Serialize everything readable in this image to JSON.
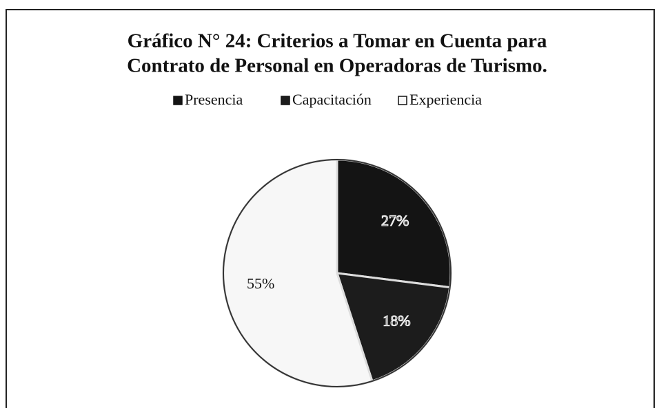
{
  "chart_data": {
    "type": "pie",
    "title": [
      "Gráfico N° 24: Criterios  a Tomar en Cuenta para",
      "Contrato de Personal en Operadoras de Turismo."
    ],
    "categories": [
      "Presencia",
      "Capacitación",
      "Experiencia"
    ],
    "values": [
      27,
      18,
      55
    ],
    "value_labels": [
      "27%",
      "18%",
      "55%"
    ],
    "colors": [
      "#141414",
      "#1c1c1c",
      "#f7f7f7"
    ],
    "legend": "top"
  }
}
